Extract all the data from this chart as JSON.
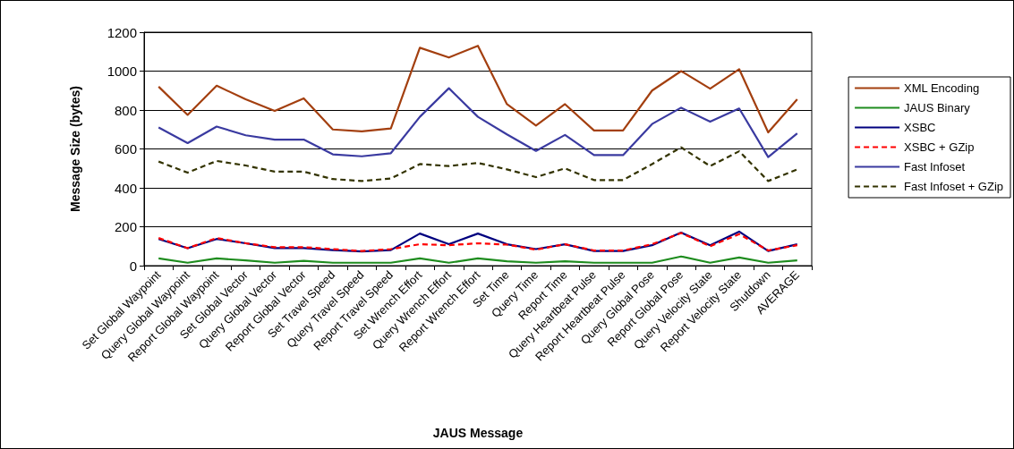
{
  "chart_data": {
    "type": "line",
    "xlabel": "JAUS Message",
    "ylabel": "Message Size (bytes)",
    "categories": [
      "Set Global Waypoint",
      "Query Global Waypoint",
      "Report Global Waypoint",
      "Set Global Vector",
      "Query Global Vector",
      "Report Global Vector",
      "Set Travel Speed",
      "Query Travel Speed",
      "Report Travel Speed",
      "Set Wrench Effort",
      "Query Wrench Effort",
      "Report Wrench Effort",
      "Set Time",
      "Query Time",
      "Report Time",
      "Query Heartbeat Pulse",
      "Report Heartbeat Pulse",
      "Query Global Pose",
      "Report Global Pose",
      "Query Velocity State",
      "Report Velocity State",
      "Shutdown",
      "AVERAGE"
    ],
    "series": [
      {
        "name": "XML Encoding",
        "color": "#a33f0f",
        "line_style": "solid",
        "values": [
          920,
          775,
          925,
          855,
          795,
          860,
          700,
          690,
          705,
          1120,
          1070,
          1130,
          830,
          720,
          830,
          695,
          695,
          900,
          1000,
          910,
          1010,
          685,
          855
        ]
      },
      {
        "name": "JAUS Binary",
        "color": "#1e8c1e",
        "line_style": "solid",
        "values": [
          37,
          15,
          37,
          27,
          15,
          25,
          15,
          15,
          15,
          37,
          15,
          37,
          22,
          15,
          22,
          15,
          15,
          15,
          47,
          15,
          42,
          15,
          27
        ]
      },
      {
        "name": "XSBC",
        "color": "#00007f",
        "line_style": "solid",
        "values": [
          137,
          90,
          137,
          115,
          90,
          90,
          80,
          73,
          80,
          165,
          110,
          165,
          110,
          85,
          110,
          75,
          75,
          105,
          170,
          105,
          175,
          75,
          110
        ]
      },
      {
        "name": "XSBC + GZip",
        "color": "#ff0000",
        "line_style": "dashed",
        "values": [
          142,
          90,
          142,
          115,
          95,
          95,
          85,
          75,
          85,
          110,
          105,
          115,
          108,
          82,
          110,
          78,
          78,
          110,
          168,
          100,
          162,
          78,
          105
        ]
      },
      {
        "name": "Fast Infoset",
        "color": "#3a3aa0",
        "line_style": "solid",
        "values": [
          710,
          630,
          715,
          670,
          648,
          648,
          572,
          562,
          578,
          765,
          912,
          765,
          675,
          590,
          672,
          568,
          568,
          728,
          812,
          740,
          808,
          558,
          680
        ]
      },
      {
        "name": "Fast Infoset + GZip",
        "color": "#333300",
        "line_style": "dashed",
        "values": [
          535,
          478,
          538,
          515,
          483,
          483,
          445,
          435,
          448,
          522,
          512,
          528,
          495,
          455,
          500,
          440,
          440,
          522,
          608,
          512,
          588,
          435,
          495
        ]
      }
    ],
    "ylim": [
      0,
      1200
    ],
    "yticks": [
      0,
      200,
      400,
      600,
      800,
      1000,
      1200
    ],
    "grid": "y",
    "legend": "right",
    "marker": "none"
  }
}
